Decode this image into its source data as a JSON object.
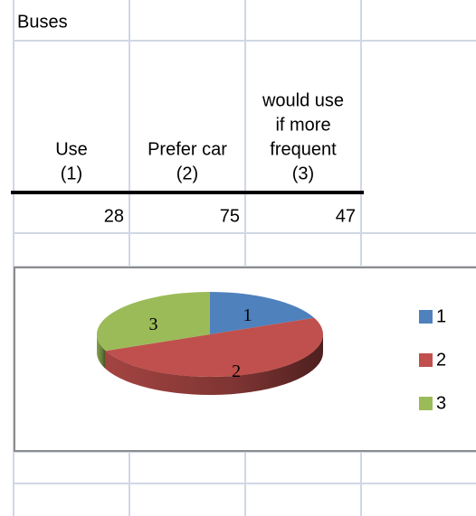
{
  "sheet": {
    "title": "Buses",
    "headers": [
      [
        "Use",
        "(1)"
      ],
      [
        "Prefer car",
        "(2)"
      ],
      [
        "would use",
        "if more",
        "frequent",
        "(3)"
      ]
    ]
  },
  "chart_data": {
    "type": "pie",
    "categories": [
      "1",
      "2",
      "3"
    ],
    "values": [
      28,
      75,
      47
    ],
    "colors": [
      "#4f81bd",
      "#c0504d",
      "#9bbb59"
    ],
    "legend": "right"
  }
}
